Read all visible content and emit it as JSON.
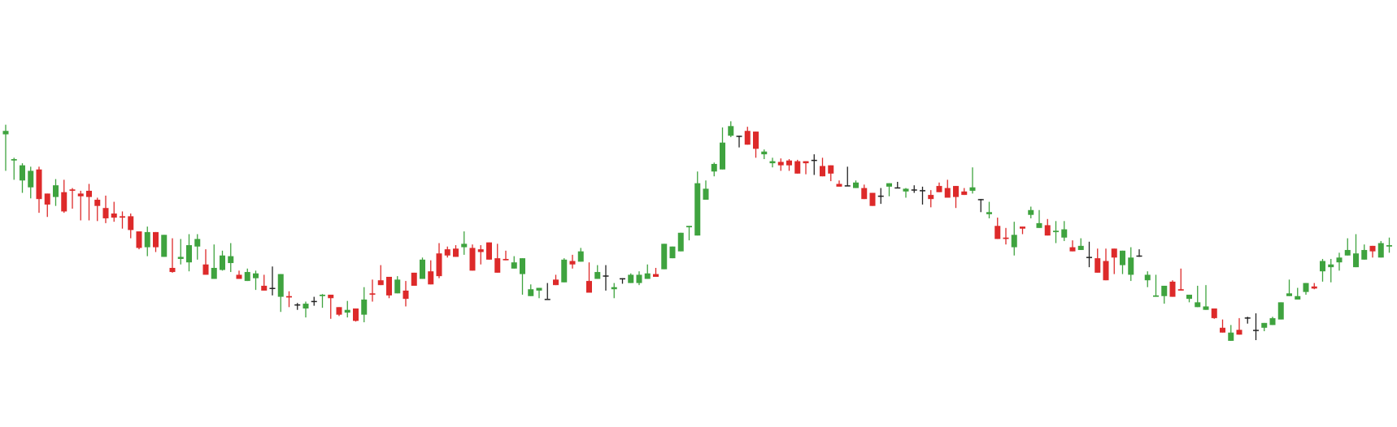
{
  "chart_data": {
    "type": "candlestick",
    "ylim": [
      0,
      526
    ],
    "grid": false,
    "legend": "none",
    "colors": {
      "up": "#3fa33f",
      "down": "#dd2a2a",
      "neutral": "#222222"
    },
    "candles": [
      [
        378,
        383,
        389,
        325,
        392
      ],
      [
        340,
        342,
        336,
        312,
        344
      ],
      [
        311,
        333,
        308,
        293,
        336
      ],
      [
        301,
        325,
        300,
        285,
        331
      ],
      [
        327,
        284,
        290,
        264,
        331
      ],
      [
        292,
        276,
        283,
        258,
        292
      ],
      [
        287,
        304,
        281,
        274,
        313
      ],
      [
        294,
        266,
        288,
        264,
        312
      ],
      [
        298,
        296,
        276,
        270,
        300
      ],
      [
        292,
        288,
        290,
        253,
        296
      ],
      [
        296,
        287,
        288,
        253,
        306
      ],
      [
        283,
        274,
        286,
        252,
        276
      ],
      [
        271,
        256,
        270,
        249,
        289
      ],
      [
        263,
        257,
        277,
        251,
        280
      ],
      [
        259,
        257,
        266,
        241,
        266
      ],
      [
        259,
        239,
        263,
        227,
        250
      ],
      [
        237,
        213,
        234,
        225,
        211
      ],
      [
        214,
        236,
        218,
        201,
        244
      ],
      [
        236,
        214,
        219,
        207,
        224
      ],
      [
        200,
        232,
        213,
        214,
        206
      ],
      [
        184,
        178,
        227,
        177,
        200
      ],
      [
        197,
        200,
        226,
        189,
        214
      ],
      [
        192,
        217,
        233,
        179,
        212
      ],
      [
        215,
        226,
        233,
        196,
        217
      ],
      [
        189,
        174,
        211,
        183,
        197
      ],
      [
        168,
        184,
        218,
        177,
        197
      ],
      [
        181,
        202,
        206,
        180,
        209
      ],
      [
        191,
        201,
        197,
        178,
        220
      ],
      [
        174,
        168,
        169,
        175,
        180
      ],
      [
        165,
        178,
        183,
        169,
        178
      ],
      [
        169,
        176,
        158,
        152,
        180
      ],
      [
        158,
        151,
        174,
        154,
        168
      ],
      [
        154,
        155,
        186,
        144,
        182
      ],
      [
        142,
        175,
        136,
        120,
        166
      ],
      [
        143,
        141,
        135,
        127,
        150
      ],
      [
        131,
        130,
        128,
        123,
        133
      ],
      [
        125,
        132,
        127,
        112,
        135
      ],
      [
        135,
        136,
        132,
        129,
        142
      ],
      [
        143,
        145,
        135,
        126,
        146
      ],
      [
        145,
        140,
        125,
        110,
        140
      ],
      [
        127,
        116,
        116,
        114,
        127
      ],
      [
        119,
        123,
        112,
        126,
        136
      ],
      [
        125,
        107,
        108,
        106,
        116
      ],
      [
        116,
        138,
        115,
        105,
        156
      ],
      [
        147,
        145,
        145,
        135,
        167
      ],
      [
        166,
        159,
        162,
        167,
        188
      ],
      [
        171,
        144,
        150,
        140,
        165
      ],
      [
        147,
        167,
        155,
        153,
        172
      ],
      [
        151,
        139,
        155,
        128,
        165
      ],
      [
        177,
        158,
        163,
        162,
        176
      ],
      [
        168,
        196,
        186,
        179,
        199
      ],
      [
        179,
        160,
        168,
        190,
        195
      ],
      [
        205,
        172,
        169,
        201,
        220
      ],
      [
        211,
        202,
        205,
        199,
        215
      ],
      [
        212,
        200,
        201,
        209,
        217
      ],
      [
        214,
        219,
        203,
        231,
        237
      ],
      [
        213,
        180,
        214,
        216,
        218
      ],
      [
        211,
        207,
        208,
        189,
        217
      ],
      [
        221,
        196,
        199,
        217,
        221
      ],
      [
        198,
        177,
        198,
        184,
        219
      ],
      [
        197,
        195,
        204,
        209,
        206
      ],
      [
        183,
        192,
        192,
        195,
        201
      ],
      [
        175,
        198,
        170,
        145,
        196
      ],
      [
        143,
        153,
        160,
        148,
        152
      ],
      [
        151,
        155,
        155,
        140,
        149
      ],
      [
        139,
        139,
        154,
        152,
        162
      ],
      [
        167,
        159,
        174,
        165,
        159
      ],
      [
        163,
        196,
        166,
        187,
        198
      ],
      [
        194,
        189,
        200,
        183,
        203
      ],
      [
        193,
        208,
        197,
        200,
        213
      ],
      [
        165,
        148,
        182,
        192,
        191
      ],
      [
        168,
        178,
        181,
        188,
        180
      ],
      [
        173,
        173,
        175,
        151,
        188
      ],
      [
        153,
        156,
        150,
        140,
        162
      ],
      [
        169,
        168,
        165,
        161,
        166
      ],
      [
        162,
        174,
        172,
        169,
        176
      ],
      [
        162,
        174,
        159,
        176,
        179
      ],
      [
        168,
        176,
        175,
        181,
        189
      ],
      [
        175,
        171,
        182,
        184,
        180
      ],
      [
        182,
        219,
        210,
        211,
        219
      ],
      [
        198,
        215,
        200,
        206,
        213
      ],
      [
        208,
        235,
        215,
        215,
        220
      ],
      [
        243,
        245,
        224,
        245,
        234
      ],
      [
        231,
        307,
        240,
        232,
        324
      ],
      [
        283,
        299,
        299,
        286,
        311
      ],
      [
        324,
        335,
        331,
        317,
        337
      ],
      [
        327,
        366,
        332,
        376,
        388
      ],
      [
        376,
        390,
        392,
        374,
        397
      ],
      [
        375,
        376,
        369,
        359,
        376
      ],
      [
        383,
        363,
        381,
        381,
        389
      ],
      [
        382,
        357,
        362,
        344,
        346
      ],
      [
        349,
        353,
        344,
        342,
        356
      ],
      [
        336,
        339,
        337,
        330,
        344
      ],
      [
        338,
        333,
        343,
        325,
        341
      ],
      [
        340,
        333,
        325,
        339,
        342
      ],
      [
        339,
        321,
        323,
        340,
        341
      ],
      [
        339,
        336,
        320,
        331,
        335
      ],
      [
        340,
        341,
        323,
        319,
        349
      ],
      [
        332,
        317,
        321,
        323,
        344
      ],
      [
        333,
        321,
        313,
        310,
        322
      ],
      [
        306,
        302,
        308,
        304,
        311
      ],
      [
        304,
        303,
        306,
        316,
        331
      ],
      [
        300,
        308,
        305,
        302,
        311
      ],
      [
        300,
        284,
        293,
        294,
        305
      ],
      [
        293,
        274,
        278,
        277,
        274
      ],
      [
        289,
        288,
        277,
        295,
        300
      ],
      [
        302,
        307,
        288,
        292,
        303
      ],
      [
        300,
        301,
        304,
        301,
        309
      ],
      [
        295,
        299,
        291,
        286,
        300
      ],
      [
        297,
        298,
        304,
        297,
        293
      ],
      [
        297,
        297,
        290,
        276,
        302
      ],
      [
        290,
        284,
        280,
        272,
        297
      ],
      [
        303,
        294,
        300,
        308,
        302
      ],
      [
        300,
        286,
        304,
        312,
        289
      ],
      [
        303,
        287,
        284,
        271,
        300
      ],
      [
        295,
        290,
        299,
        290,
        300
      ],
      [
        296,
        301,
        292,
        315,
        330
      ],
      [
        284,
        283,
        265,
        270,
        278
      ],
      [
        262,
        265,
        280,
        256,
        278
      ],
      [
        245,
        226,
        234,
        229,
        257
      ],
      [
        228,
        226,
        223,
        218,
        242
      ],
      [
        214,
        232,
        245,
        202,
        251
      ],
      [
        244,
        241,
        242,
        233,
        240
      ],
      [
        261,
        268,
        257,
        256,
        273
      ],
      [
        242,
        249,
        256,
        268,
        247
      ],
      [
        246,
        231,
        255,
        250,
        252
      ],
      [
        236,
        238,
        241,
        220,
        252
      ],
      [
        228,
        240,
        237,
        223,
        252
      ],
      [
        214,
        208,
        224,
        220,
        218
      ],
      [
        210,
        216,
        222,
        227,
        225
      ],
      [
        200,
        200,
        185,
        222,
        200
      ],
      [
        198,
        177,
        212,
        185,
        203
      ],
      [
        194,
        166,
        197,
        187,
        212
      ],
      [
        212,
        199,
        187,
        175,
        176
      ],
      [
        188,
        209,
        179,
        175,
        181
      ],
      [
        174,
        199,
        214,
        165,
        206
      ],
      [
        202,
        201,
        206,
        200,
        211
      ],
      [
        166,
        174,
        167,
        156,
        179
      ],
      [
        142,
        144,
        154,
        162,
        174
      ],
      [
        143,
        158,
        132,
        148,
        153
      ],
      [
        164,
        142,
        165,
        151,
        166
      ],
      [
        153,
        151,
        169,
        159,
        183
      ],
      [
        139,
        145,
        138,
        134,
        141
      ],
      [
        127,
        134,
        145,
        143,
        158
      ],
      [
        123,
        128,
        159,
        136,
        137
      ],
      [
        125,
        111,
        117,
        111,
        110
      ],
      [
        97,
        90,
        109,
        92,
        100
      ],
      [
        78,
        90,
        101,
        92,
        90
      ],
      [
        94,
        87,
        99,
        111,
        92
      ],
      [
        111,
        112,
        103,
        109,
        113
      ],
      [
        94,
        93,
        79,
        118,
        113
      ],
      [
        97,
        104,
        98,
        92,
        101
      ],
      [
        101,
        111,
        113,
        103,
        113
      ],
      [
        109,
        134,
        112,
        116,
        126
      ],
      [
        143,
        147,
        167,
        146,
        143
      ],
      [
        138,
        143,
        146,
        148,
        155
      ],
      [
        149,
        162,
        150,
        145,
        147
      ],
      [
        157,
        154,
        155,
        153,
        162
      ],
      [
        179,
        194,
        164,
        165,
        197
      ],
      [
        185,
        189,
        174,
        163,
        197
      ],
      [
        192,
        199,
        197,
        180,
        206
      ],
      [
        202,
        210,
        215,
        208,
        227
      ],
      [
        185,
        205,
        233,
        198,
        207
      ],
      [
        196,
        210,
        203,
        218,
        199
      ],
      [
        216,
        208,
        214,
        199,
        209
      ],
      [
        199,
        220,
        210,
        223,
        219
      ],
      [
        215,
        217,
        206,
        225,
        228
      ],
      [
        231,
        222,
        224,
        221,
        223
      ],
      [
        254,
        236,
        236,
        233,
        250
      ],
      [
        263,
        246,
        230,
        256,
        274
      ],
      [
        267,
        239,
        247,
        236,
        252
      ],
      [
        279,
        238,
        222,
        276,
        273
      ],
      [
        231,
        231,
        235,
        233,
        237
      ],
      [
        229,
        273,
        263,
        263,
        274
      ],
      [
        254,
        239,
        247,
        244,
        256
      ],
      [
        210,
        210,
        226,
        250,
        224
      ],
      [
        218,
        246,
        254,
        212,
        255
      ],
      [
        222,
        249,
        227,
        233,
        239
      ],
      [
        232,
        222,
        227,
        240,
        240
      ],
      [
        250,
        246,
        253,
        246,
        248
      ],
      [
        239,
        242,
        218,
        249,
        249
      ],
      [
        245,
        240,
        217,
        227,
        249
      ],
      [
        253,
        245,
        245,
        249,
        237
      ],
      [
        237,
        223,
        229,
        238,
        250
      ],
      [
        224,
        230,
        233,
        239,
        225
      ],
      [
        255,
        250,
        251,
        250,
        249
      ],
      [
        258,
        254,
        250,
        246,
        252
      ],
      [
        240,
        245,
        250,
        243,
        247
      ],
      [
        252,
        243,
        240,
        244,
        256
      ],
      [
        298,
        296,
        299,
        297,
        298
      ],
      [
        296,
        295,
        297,
        296,
        296
      ],
      [
        295,
        295,
        296,
        296,
        296
      ]
    ]
  }
}
